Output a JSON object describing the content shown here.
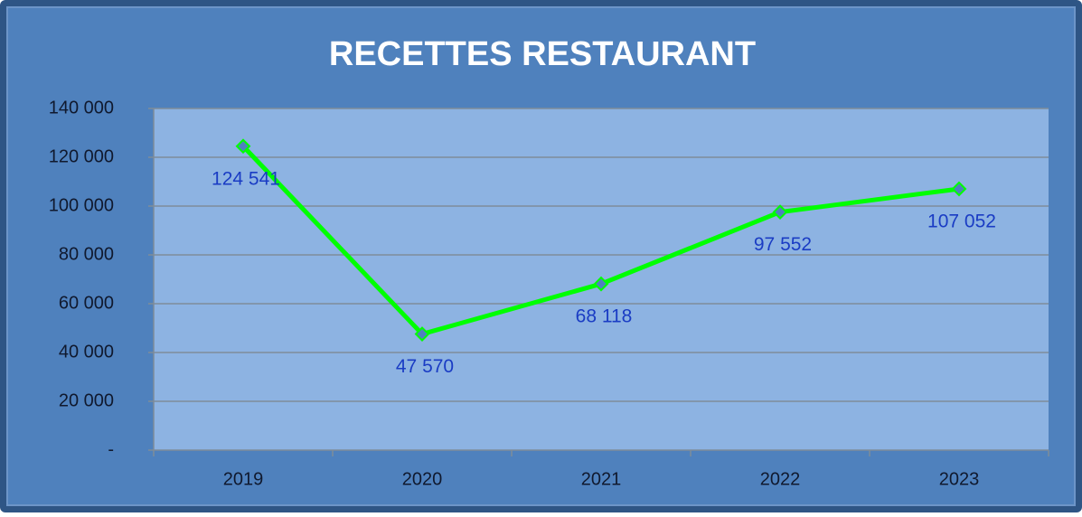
{
  "chart_data": {
    "type": "line",
    "title": "RECETTES RESTAURANT",
    "categories": [
      "2019",
      "2020",
      "2021",
      "2022",
      "2023"
    ],
    "values": [
      124541,
      47570,
      68118,
      97552,
      107052
    ],
    "value_labels": [
      "124 541",
      "47 570",
      "68 118",
      "97 552",
      "107 052"
    ],
    "color": "#00ff00",
    "ylim": [
      0,
      140000
    ],
    "yticks": [
      {
        "value": 0,
        "label": "-"
      },
      {
        "value": 20000,
        "label": "20 000"
      },
      {
        "value": 40000,
        "label": "40 000"
      },
      {
        "value": 60000,
        "label": "60 000"
      },
      {
        "value": 80000,
        "label": "80 000"
      },
      {
        "value": 100000,
        "label": "100 000"
      },
      {
        "value": 120000,
        "label": "120 000"
      },
      {
        "value": 140000,
        "label": "140 000"
      }
    ],
    "grid": true
  }
}
